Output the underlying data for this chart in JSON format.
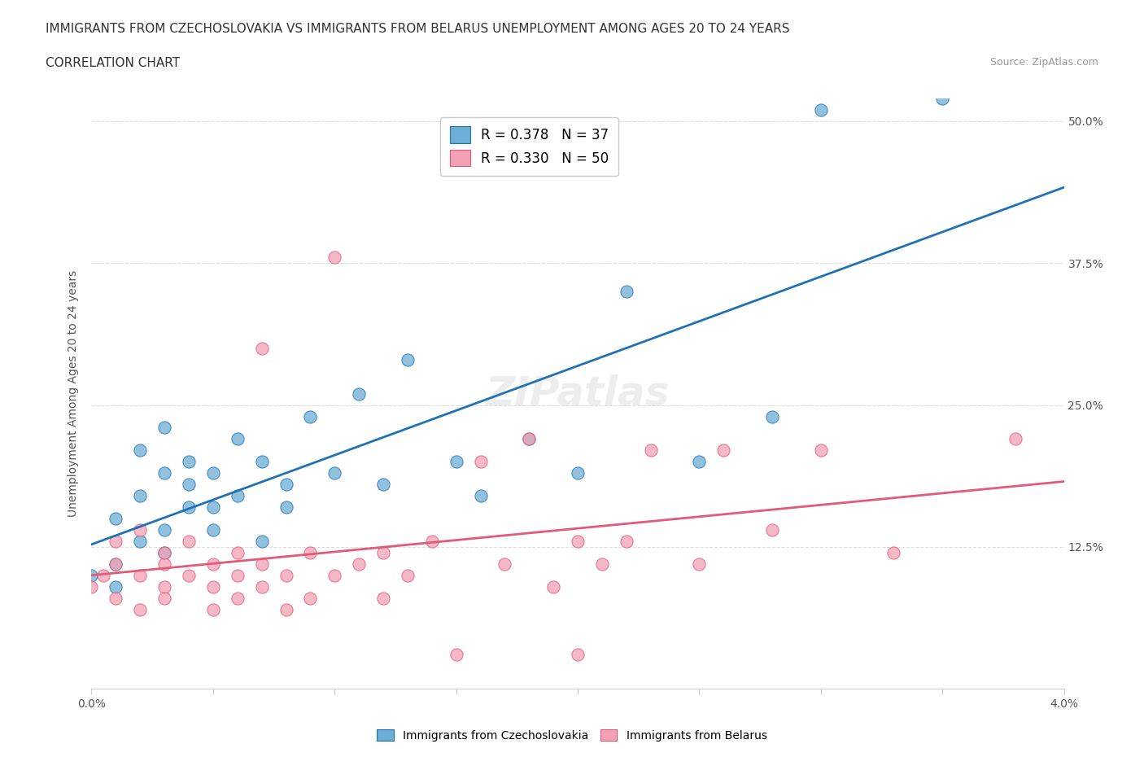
{
  "title_line1": "IMMIGRANTS FROM CZECHOSLOVAKIA VS IMMIGRANTS FROM BELARUS UNEMPLOYMENT AMONG AGES 20 TO 24 YEARS",
  "title_line2": "CORRELATION CHART",
  "source_text": "Source: ZipAtlas.com",
  "xlabel": "",
  "ylabel": "Unemployment Among Ages 20 to 24 years",
  "legend_label1": "Immigrants from Czechoslovakia",
  "legend_label2": "Immigrants from Belarus",
  "R1": 0.378,
  "N1": 37,
  "R2": 0.33,
  "N2": 50,
  "color1": "#6baed6",
  "color2": "#f4a0b5",
  "trendline_color1": "#2171b5",
  "trendline_color2": "#e05a7a",
  "xlim": [
    0.0,
    0.04
  ],
  "ylim": [
    0.0,
    0.52
  ],
  "xticks": [
    0.0,
    0.005,
    0.01,
    0.015,
    0.02,
    0.025,
    0.03,
    0.035,
    0.04
  ],
  "xticklabels": [
    "0.0%",
    "",
    "",
    "",
    "",
    "",
    "",
    "",
    "4.0%"
  ],
  "yticks_right": [
    0.0,
    0.125,
    0.25,
    0.375,
    0.5
  ],
  "yticklabels_right": [
    "",
    "12.5%",
    "25.0%",
    "37.5%",
    "50.0%"
  ],
  "scatter1_x": [
    0.0,
    0.001,
    0.001,
    0.001,
    0.002,
    0.002,
    0.002,
    0.003,
    0.003,
    0.003,
    0.003,
    0.004,
    0.004,
    0.004,
    0.005,
    0.005,
    0.005,
    0.006,
    0.006,
    0.007,
    0.007,
    0.008,
    0.008,
    0.009,
    0.01,
    0.011,
    0.012,
    0.013,
    0.015,
    0.016,
    0.018,
    0.02,
    0.022,
    0.025,
    0.028,
    0.03,
    0.035
  ],
  "scatter1_y": [
    0.1,
    0.11,
    0.09,
    0.15,
    0.13,
    0.17,
    0.21,
    0.12,
    0.19,
    0.14,
    0.23,
    0.16,
    0.2,
    0.18,
    0.14,
    0.16,
    0.19,
    0.22,
    0.17,
    0.13,
    0.2,
    0.18,
    0.16,
    0.24,
    0.19,
    0.26,
    0.18,
    0.29,
    0.2,
    0.17,
    0.22,
    0.19,
    0.35,
    0.2,
    0.24,
    0.51,
    0.52
  ],
  "scatter2_x": [
    0.0,
    0.0005,
    0.001,
    0.001,
    0.001,
    0.002,
    0.002,
    0.002,
    0.003,
    0.003,
    0.003,
    0.003,
    0.004,
    0.004,
    0.005,
    0.005,
    0.005,
    0.006,
    0.006,
    0.006,
    0.007,
    0.007,
    0.007,
    0.008,
    0.008,
    0.009,
    0.009,
    0.01,
    0.01,
    0.011,
    0.012,
    0.012,
    0.013,
    0.014,
    0.015,
    0.016,
    0.017,
    0.018,
    0.019,
    0.02,
    0.02,
    0.021,
    0.022,
    0.023,
    0.025,
    0.026,
    0.028,
    0.03,
    0.033,
    0.038
  ],
  "scatter2_y": [
    0.09,
    0.1,
    0.08,
    0.11,
    0.13,
    0.07,
    0.1,
    0.14,
    0.09,
    0.11,
    0.08,
    0.12,
    0.1,
    0.13,
    0.07,
    0.09,
    0.11,
    0.08,
    0.1,
    0.12,
    0.09,
    0.11,
    0.3,
    0.07,
    0.1,
    0.12,
    0.08,
    0.1,
    0.38,
    0.11,
    0.08,
    0.12,
    0.1,
    0.13,
    0.03,
    0.2,
    0.11,
    0.22,
    0.09,
    0.03,
    0.13,
    0.11,
    0.13,
    0.21,
    0.11,
    0.21,
    0.14,
    0.21,
    0.12,
    0.22
  ],
  "background_color": "#ffffff",
  "grid_color": "#dddddd",
  "title_fontsize": 11,
  "axis_label_fontsize": 10,
  "tick_fontsize": 10
}
